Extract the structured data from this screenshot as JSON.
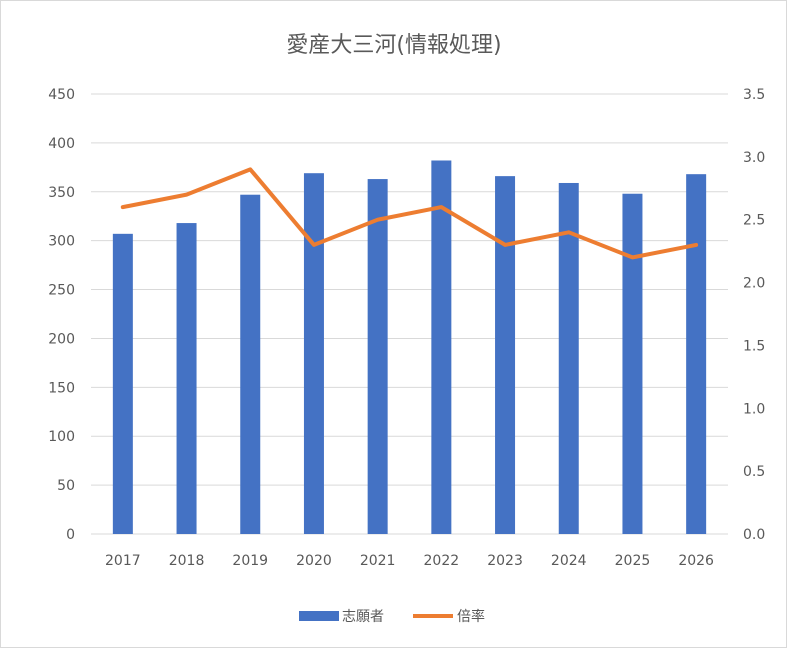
{
  "chart_data": {
    "type": "bar+line",
    "title": "愛産大三河(情報処理)",
    "categories": [
      "2017",
      "2018",
      "2019",
      "2020",
      "2021",
      "2022",
      "2023",
      "2024",
      "2025",
      "2026"
    ],
    "series": [
      {
        "name": "志願者",
        "type": "bar",
        "axis": "left",
        "color": "#4472c4",
        "values": [
          307,
          318,
          347,
          369,
          363,
          382,
          366,
          359,
          348,
          368
        ]
      },
      {
        "name": "倍率",
        "type": "line",
        "axis": "right",
        "color": "#ed7d31",
        "values": [
          2.6,
          2.7,
          2.9,
          2.3,
          2.5,
          2.6,
          2.3,
          2.4,
          2.2,
          2.3
        ]
      }
    ],
    "y_left": {
      "min": 0,
      "max": 450,
      "step": 50,
      "tick_labels": [
        "0",
        "50",
        "100",
        "150",
        "200",
        "250",
        "300",
        "350",
        "400",
        "450"
      ]
    },
    "y_right": {
      "min": 0,
      "max": 3.5,
      "step": 0.5,
      "tick_labels": [
        "0.0",
        "0.5",
        "1.0",
        "1.5",
        "2.0",
        "2.5",
        "3.0",
        "3.5"
      ]
    },
    "grid": true,
    "legend_position": "bottom",
    "gridline_color": "#d9d9d9"
  }
}
